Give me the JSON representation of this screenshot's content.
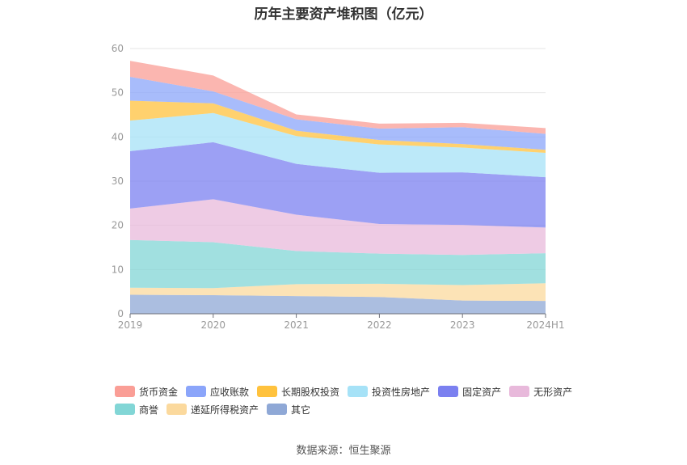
{
  "chart_data": {
    "type": "area",
    "stacked": true,
    "title": "历年主要资产堆积图（亿元）",
    "categories": [
      "2019",
      "2020",
      "2021",
      "2022",
      "2023",
      "2024H1"
    ],
    "ylim": [
      0,
      60
    ],
    "yticks": [
      0,
      10,
      20,
      30,
      40,
      50,
      60
    ],
    "grid": true,
    "legend_position": "bottom",
    "series": [
      {
        "name": "其它",
        "color": "#8fa8d6",
        "values": [
          4.3,
          4.2,
          4.0,
          3.8,
          3.0,
          2.9
        ]
      },
      {
        "name": "递延所得税资产",
        "color": "#fbd99d",
        "values": [
          1.6,
          1.6,
          2.7,
          3.0,
          3.5,
          4.0
        ]
      },
      {
        "name": "商誉",
        "color": "#82d6d6",
        "values": [
          10.8,
          10.4,
          7.5,
          6.8,
          6.8,
          6.8
        ]
      },
      {
        "name": "无形资产",
        "color": "#e8b9db",
        "values": [
          7.1,
          9.7,
          8.2,
          6.7,
          6.8,
          5.8
        ]
      },
      {
        "name": "固定资产",
        "color": "#7b80f0",
        "values": [
          13.0,
          12.9,
          11.5,
          11.6,
          11.9,
          11.4
        ]
      },
      {
        "name": "投资性房地产",
        "color": "#a6e2f7",
        "values": [
          6.9,
          6.6,
          6.3,
          6.4,
          5.6,
          5.5
        ]
      },
      {
        "name": "长期股权投资",
        "color": "#ffc23d",
        "values": [
          4.5,
          2.2,
          1.2,
          1.0,
          0.8,
          0.7
        ]
      },
      {
        "name": "应收账款",
        "color": "#8ba5fa",
        "values": [
          5.4,
          2.7,
          2.6,
          2.6,
          3.8,
          3.6
        ]
      },
      {
        "name": "货币资金",
        "color": "#fa9e96",
        "values": [
          3.6,
          3.6,
          1.1,
          1.1,
          1.0,
          1.3
        ]
      }
    ],
    "legend_order": [
      "货币资金",
      "应收账款",
      "长期股权投资",
      "投资性房地产",
      "固定资产",
      "无形资产",
      "商誉",
      "递延所得税资产",
      "其它"
    ]
  },
  "source": "数据来源：恒生聚源"
}
